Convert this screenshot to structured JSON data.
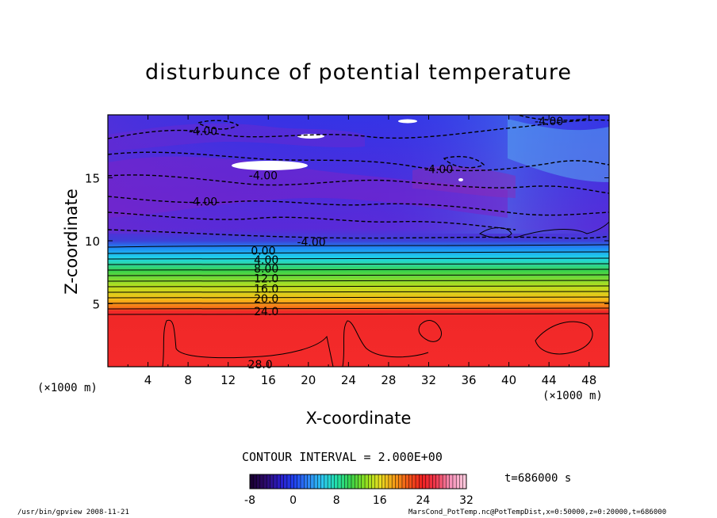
{
  "chart_data": {
    "type": "heatmap",
    "title": "disturbunce of potential temperature",
    "xlabel": "X-coordinate",
    "ylabel": "Z-coordinate",
    "x_unit_left": "(×1000 m)",
    "x_unit_right": "(×1000 m)",
    "xlim": [
      0,
      50
    ],
    "ylim": [
      0,
      20
    ],
    "xticks": [
      4,
      8,
      12,
      16,
      20,
      24,
      28,
      32,
      36,
      40,
      44,
      48
    ],
    "yticks": [
      5,
      10,
      15
    ],
    "contour_interval_text": "CONTOUR INTERVAL = 2.000E+00",
    "contour_labels": [
      {
        "text": "-4.00",
        "x": 9.5,
        "z": 18.7
      },
      {
        "text": "-4.00",
        "x": 15.5,
        "z": 15.2
      },
      {
        "text": "-4.00",
        "x": 9.5,
        "z": 13.1
      },
      {
        "text": "-4.00",
        "x": 33,
        "z": 15.7
      },
      {
        "text": "-4.00",
        "x": 44,
        "z": 19.5
      },
      {
        "text": "-4.00",
        "x": 20.3,
        "z": 9.9
      },
      {
        "text": "0.00",
        "x": 15.5,
        "z": 9.2
      },
      {
        "text": "4.00",
        "x": 15.8,
        "z": 8.5
      },
      {
        "text": "8.00",
        "x": 15.8,
        "z": 7.8
      },
      {
        "text": "12.0",
        "x": 15.8,
        "z": 7.0
      },
      {
        "text": "16.0",
        "x": 15.8,
        "z": 6.2
      },
      {
        "text": "20.0",
        "x": 15.8,
        "z": 5.4
      },
      {
        "text": "24.0",
        "x": 15.8,
        "z": 4.4
      },
      {
        "text": "28.0",
        "x": 15.2,
        "z": 0.2
      }
    ],
    "colorbar": {
      "ticks": [
        -8,
        0,
        8,
        16,
        24,
        32
      ],
      "min": -8,
      "max": 32,
      "colors": [
        "#1a0033",
        "#2d0a6e",
        "#2a1cc8",
        "#2040f0",
        "#2e86f5",
        "#2cc8f0",
        "#22e0a8",
        "#3ad24a",
        "#8ce020",
        "#e8e020",
        "#f5a018",
        "#f25a18",
        "#f02020",
        "#f03a50",
        "#f590b8",
        "#ffc8dc"
      ]
    },
    "time_text": "t=686000 s",
    "footer_left": "/usr/bin/gpview   2008-11-21",
    "footer_right": "MarsCond_PotTemp.nc@PotTempDist,x=0:50000,z=0:20000,t=686000"
  }
}
